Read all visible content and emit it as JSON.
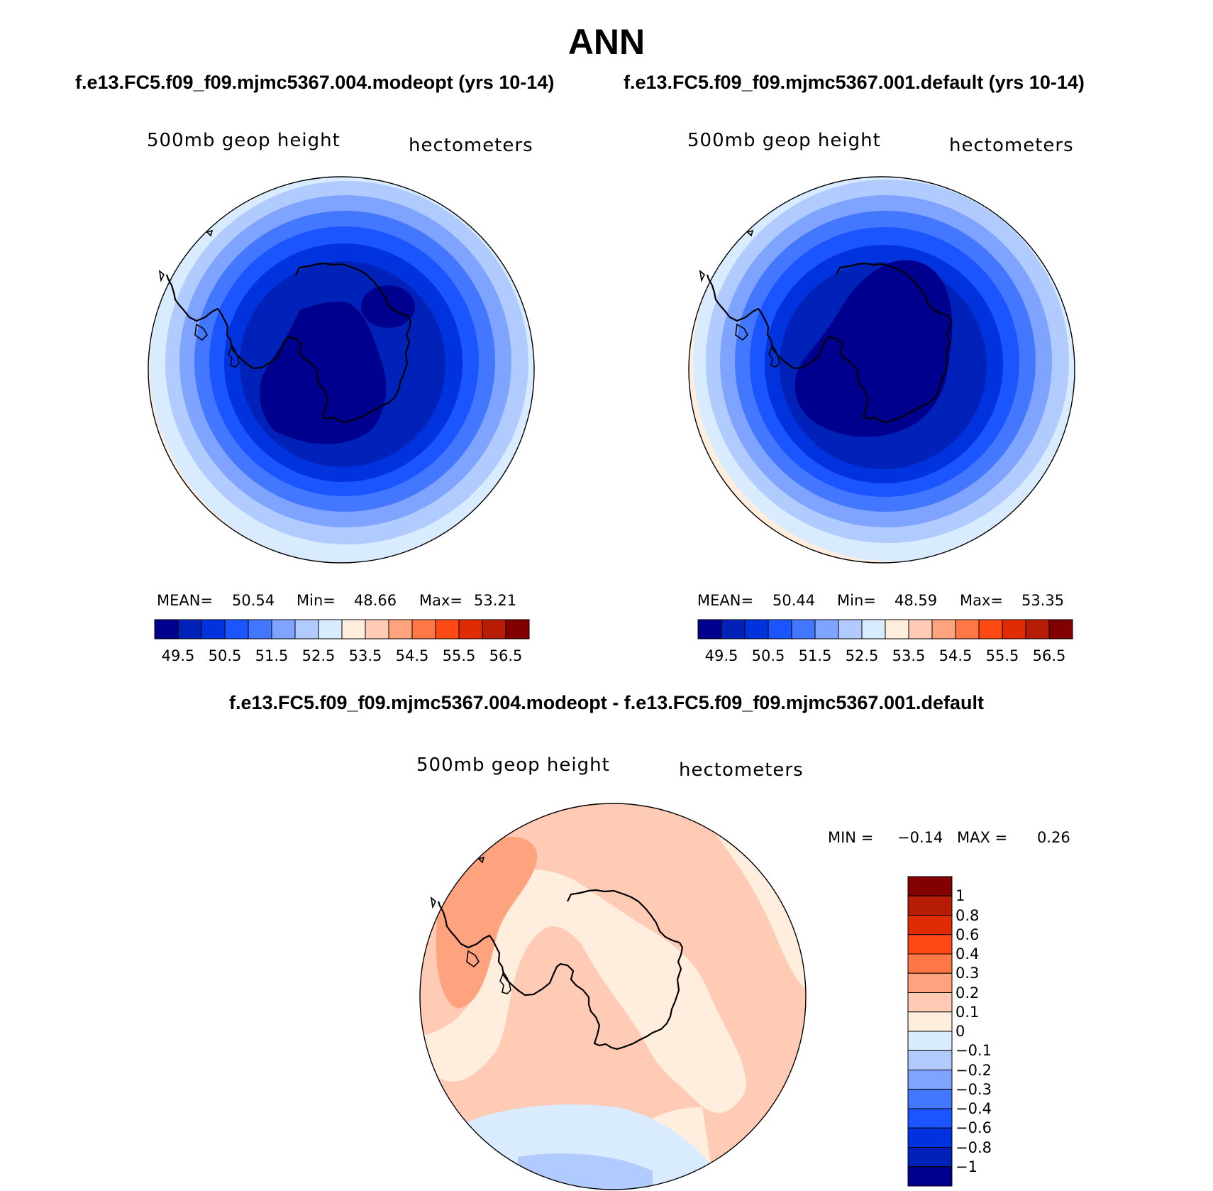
{
  "figure": {
    "title": "ANN",
    "left_case": "f.e13.FC5.f09_f09.mjmc5367.004.modeopt (yrs 10-14)",
    "right_case": "f.e13.FC5.f09_f09.mjmc5367.001.default (yrs 10-14)",
    "diff_title": "f.e13.FC5.f09_f09.mjmc5367.004.modeopt - f.e13.FC5.f09_f09.mjmc5367.001.default"
  },
  "panels": {
    "left": {
      "variable": "500mb geop height",
      "units": "hectometers",
      "mean_label": "MEAN=",
      "mean": "50.54",
      "min_label": "Min=",
      "min": "48.66",
      "max_label": "Max=",
      "max": "53.21"
    },
    "right": {
      "variable": "500mb geop height",
      "units": "hectometers",
      "mean_label": "MEAN=",
      "mean": "50.44",
      "min_label": "Min=",
      "min": "48.59",
      "max_label": "Max=",
      "max": "53.35"
    },
    "diff": {
      "variable": "500mb geop height",
      "units": "hectometers",
      "min_label": "MIN =",
      "min": "−0.14",
      "max_label": "MAX =",
      "max": "0.26"
    }
  },
  "colorbars": {
    "main": {
      "colors": [
        "#00008f",
        "#0022b8",
        "#0033dd",
        "#1a55ff",
        "#4477ff",
        "#7ea4ff",
        "#b2cbff",
        "#d9ebff",
        "#ffeedd",
        "#ffcbb4",
        "#ffa27e",
        "#ff7744",
        "#ff4a14",
        "#e02c05",
        "#b71c05",
        "#820000"
      ],
      "tick_labels": [
        "49.5",
        "50.5",
        "51.5",
        "52.5",
        "53.5",
        "54.5",
        "55.5",
        "56.5"
      ]
    },
    "diff": {
      "colors_top_to_bottom": [
        "#820000",
        "#b71c05",
        "#e02c05",
        "#ff4a14",
        "#ff7744",
        "#ffa27e",
        "#ffcbb4",
        "#ffeedd",
        "#d9ebff",
        "#b2cbff",
        "#7ea4ff",
        "#4477ff",
        "#1a55ff",
        "#0033dd",
        "#0022b8",
        "#00008f"
      ],
      "tick_labels": [
        "1",
        "0.8",
        "0.6",
        "0.4",
        "0.3",
        "0.2",
        "0.1",
        "0",
        "−0.1",
        "−0.2",
        "−0.3",
        "−0.4",
        "−0.6",
        "−0.8",
        "−1"
      ]
    }
  }
}
